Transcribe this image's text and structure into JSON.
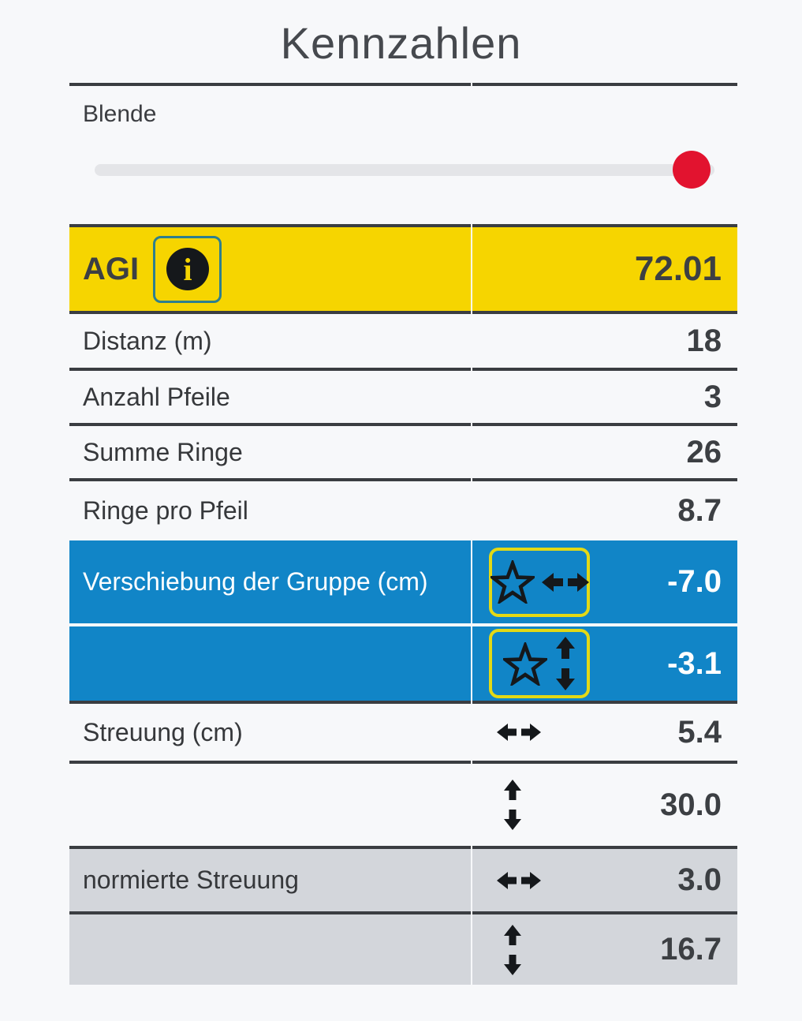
{
  "page": {
    "title": "Kennzahlen"
  },
  "slider": {
    "label": "Blende",
    "position_percent": 96
  },
  "colors": {
    "page_bg": "#f7f8fa",
    "divider_dark": "#3a3d41",
    "text": "#36383b",
    "row_yellow": "#f6d500",
    "row_blue": "#1185c7",
    "row_gray": "#d3d6db",
    "slider_track": "#e4e5e8",
    "slider_thumb": "#e2132f",
    "icon_black": "#15181b",
    "info_button_border": "#2e7f8e",
    "star_button_border": "#e3d915",
    "text_on_blue": "#ffffff"
  },
  "icons": {
    "info": "info-icon (i in filled circle)",
    "star": "star-outline-icon",
    "h": "left-right-arrows-icon",
    "v": "up-down-arrows-icon"
  },
  "table": {
    "rows": [
      {
        "kind": "agi",
        "label": "AGI",
        "value": "72.01",
        "variant": "yellow",
        "icon": "info"
      },
      {
        "kind": "distanz",
        "label": "Distanz (m)",
        "value": "18",
        "variant": "plain",
        "icon": ""
      },
      {
        "kind": "anzahl",
        "label": "Anzahl Pfeile",
        "value": "3",
        "variant": "plain",
        "icon": ""
      },
      {
        "kind": "summe",
        "label": "Summe Ringe",
        "value": "26",
        "variant": "plain",
        "icon": ""
      },
      {
        "kind": "ringe",
        "label": "Ringe pro Pfeil",
        "value": "8.7",
        "variant": "plain",
        "icon": ""
      },
      {
        "kind": "blue1",
        "label": "Verschiebung der Gruppe (cm)",
        "value": "-7.0",
        "variant": "blue",
        "icon": "star-h"
      },
      {
        "kind": "blue2",
        "label": "",
        "value": "-3.1",
        "variant": "blue",
        "icon": "star-v"
      },
      {
        "kind": "streuung",
        "label": "Streuung (cm)",
        "value": "5.4",
        "variant": "plain",
        "icon": "h"
      },
      {
        "kind": "v30",
        "label": "",
        "value": "30.0",
        "variant": "plain",
        "icon": "v"
      },
      {
        "kind": "gray1",
        "label": "normierte Streuung",
        "value": "3.0",
        "variant": "gray",
        "icon": "h"
      },
      {
        "kind": "gray2",
        "label": "",
        "value": "16.7",
        "variant": "gray",
        "icon": "v"
      }
    ]
  }
}
